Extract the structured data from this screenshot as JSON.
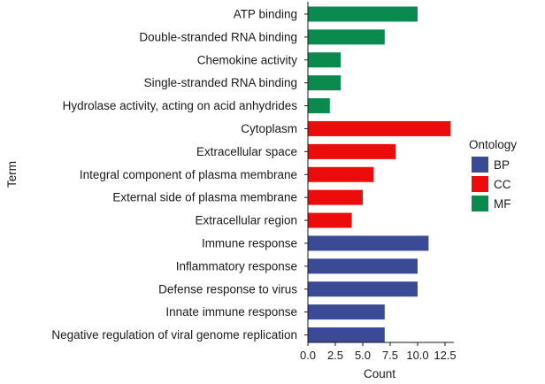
{
  "chart_data": {
    "type": "bar",
    "orientation": "horizontal",
    "xlabel": "Count",
    "ylabel": "Term",
    "xlim": [
      0,
      13.3
    ],
    "xticks": [
      0,
      2.5,
      5,
      7.5,
      10,
      12.5
    ],
    "xtick_labels": [
      "0.0",
      "2.5",
      "5.0",
      "7.5",
      "10.0",
      "12.5"
    ],
    "legend": {
      "title": "Ontology",
      "placement": "right",
      "entries": [
        {
          "name": "BP",
          "color": "#3b4a94"
        },
        {
          "name": "CC",
          "color": "#ec0c0c"
        },
        {
          "name": "MF",
          "color": "#0a8a4e"
        }
      ]
    },
    "grid": false,
    "bars": [
      {
        "term": "ATP binding",
        "value": 10,
        "ontology": "MF"
      },
      {
        "term": "Double-stranded RNA binding",
        "value": 7,
        "ontology": "MF"
      },
      {
        "term": "Chemokine activity",
        "value": 3,
        "ontology": "MF"
      },
      {
        "term": "Single-stranded RNA binding",
        "value": 3,
        "ontology": "MF"
      },
      {
        "term": "Hydrolase activity, acting on acid anhydrides",
        "value": 2,
        "ontology": "MF"
      },
      {
        "term": "Cytoplasm",
        "value": 13,
        "ontology": "CC"
      },
      {
        "term": "Extracellular space",
        "value": 8,
        "ontology": "CC"
      },
      {
        "term": "Integral component of plasma membrane",
        "value": 6,
        "ontology": "CC"
      },
      {
        "term": "External side of plasma membrane",
        "value": 5,
        "ontology": "CC"
      },
      {
        "term": "Extracellular region",
        "value": 4,
        "ontology": "CC"
      },
      {
        "term": "Immune response",
        "value": 11,
        "ontology": "BP"
      },
      {
        "term": "Inflammatory response",
        "value": 10,
        "ontology": "BP"
      },
      {
        "term": "Defense response to virus",
        "value": 10,
        "ontology": "BP"
      },
      {
        "term": "Innate immune response",
        "value": 7,
        "ontology": "BP"
      },
      {
        "term": "Negative regulation of viral genome replication",
        "value": 7,
        "ontology": "BP"
      }
    ]
  }
}
